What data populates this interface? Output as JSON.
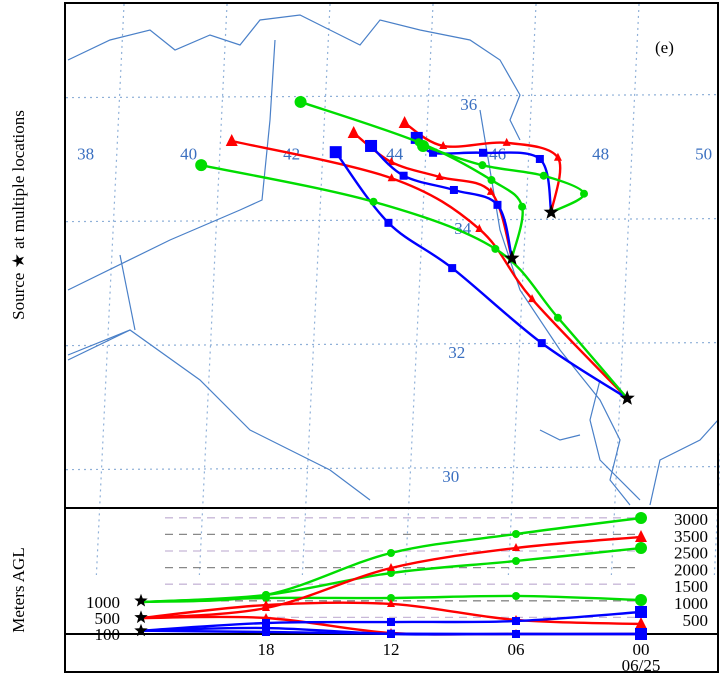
{
  "chart_data": {
    "type": "map-trajectory",
    "panel_label": "(e)",
    "y_title_map": "Source ★ at multiple locations",
    "y_title_height": "Meters AGL",
    "lon_labels": [
      38,
      40,
      42,
      44,
      46,
      48,
      50
    ],
    "lat_labels": [
      36,
      34,
      32,
      30
    ],
    "colors": {
      "red": "#ff0000",
      "blue": "#0000ff",
      "green": "#00dd00",
      "star": "#000000",
      "grid": "#8fb0d8",
      "coast": "#4a80c8"
    },
    "sources": [
      {
        "name": "source-1",
        "lon": 47.09,
        "lat": 34.35
      },
      {
        "name": "source-2",
        "lon": 46.37,
        "lat": 33.61
      },
      {
        "name": "source-3",
        "lon": 48.74,
        "lat": 31.35
      }
    ],
    "trajectories": [
      {
        "source": 0,
        "color": "red",
        "marker": "triangle",
        "points": [
          [
            47.09,
            34.35
          ],
          [
            47.17,
            35.23
          ],
          [
            46.16,
            35.47
          ],
          [
            44.93,
            35.42
          ],
          [
            44.16,
            35.79
          ]
        ]
      },
      {
        "source": 0,
        "color": "blue",
        "marker": "square",
        "points": [
          [
            47.09,
            34.35
          ],
          [
            46.82,
            35.21
          ],
          [
            45.71,
            35.31
          ],
          [
            44.74,
            35.31
          ],
          [
            44.41,
            35.55
          ]
        ]
      },
      {
        "source": 0,
        "color": "green",
        "marker": "circle",
        "points": [
          [
            47.09,
            34.35
          ],
          [
            47.71,
            34.65
          ],
          [
            46.91,
            34.94
          ],
          [
            45.71,
            35.11
          ],
          [
            44.54,
            35.42
          ]
        ]
      },
      {
        "source": 1,
        "color": "red",
        "marker": "triangle",
        "points": [
          [
            46.37,
            33.61
          ],
          [
            45.9,
            34.68
          ],
          [
            44.89,
            34.92
          ],
          [
            43.94,
            35.16
          ],
          [
            43.18,
            35.63
          ]
        ]
      },
      {
        "source": 1,
        "color": "blue",
        "marker": "square",
        "points": [
          [
            46.37,
            33.61
          ],
          [
            46.04,
            34.47
          ],
          [
            45.18,
            34.71
          ],
          [
            44.19,
            34.94
          ],
          [
            43.53,
            35.42
          ]
        ]
      },
      {
        "source": 1,
        "color": "green",
        "marker": "circle",
        "points": [
          [
            46.37,
            33.61
          ],
          [
            46.52,
            34.44
          ],
          [
            45.9,
            34.87
          ],
          [
            44.45,
            35.48
          ],
          [
            42.12,
            36.13
          ]
        ]
      },
      {
        "source": 2,
        "color": "red",
        "marker": "triangle",
        "points": [
          [
            48.74,
            31.35
          ],
          [
            46.8,
            32.95
          ],
          [
            45.71,
            34.08
          ],
          [
            43.96,
            34.9
          ],
          [
            40.82,
            35.5
          ]
        ]
      },
      {
        "source": 2,
        "color": "blue",
        "marker": "square",
        "points": [
          [
            48.74,
            31.35
          ],
          [
            47.03,
            32.24
          ],
          [
            45.22,
            33.45
          ],
          [
            43.94,
            34.18
          ],
          [
            42.85,
            35.32
          ]
        ]
      },
      {
        "source": 2,
        "color": "green",
        "marker": "circle",
        "points": [
          [
            48.74,
            31.35
          ],
          [
            47.32,
            32.65
          ],
          [
            46.04,
            33.76
          ],
          [
            43.63,
            34.52
          ],
          [
            40.25,
            35.11
          ]
        ]
      }
    ],
    "height_panel": {
      "x_hours": [
        -24,
        -18,
        -12,
        -6,
        0
      ],
      "x_tick_labels": [
        "18",
        "12",
        "06",
        "00"
      ],
      "date_label": "06/25",
      "start_height_labels": [
        "1000",
        "500",
        "100"
      ],
      "right_axis_labels": [
        "3000",
        "3500",
        "2500",
        "2000",
        "1500",
        "1000",
        "500"
      ],
      "ylim": [
        0,
        3700
      ],
      "series": [
        {
          "color": "green",
          "marker": "circle",
          "values": [
            964,
            1175,
            2440,
            3012,
            3494
          ]
        },
        {
          "color": "green",
          "marker": "circle",
          "values": [
            964,
            1175,
            1837,
            2199,
            2590
          ]
        },
        {
          "color": "green",
          "marker": "circle",
          "values": [
            964,
            1084,
            1084,
            1145,
            1024
          ]
        },
        {
          "color": "red",
          "marker": "triangle",
          "values": [
            482,
            783,
            1988,
            2590,
            2922
          ]
        },
        {
          "color": "red",
          "marker": "triangle",
          "values": [
            482,
            873,
            904,
            422,
            301
          ]
        },
        {
          "color": "red",
          "marker": "triangle",
          "values": [
            482,
            482,
            30,
            0,
            0
          ]
        },
        {
          "color": "blue",
          "marker": "square",
          "values": [
            100,
            331,
            361,
            391,
            663
          ]
        },
        {
          "color": "blue",
          "marker": "square",
          "values": [
            100,
            180,
            0,
            0,
            0
          ]
        },
        {
          "color": "blue",
          "marker": "square",
          "values": [
            100,
            60,
            10,
            0,
            0
          ]
        }
      ]
    }
  }
}
